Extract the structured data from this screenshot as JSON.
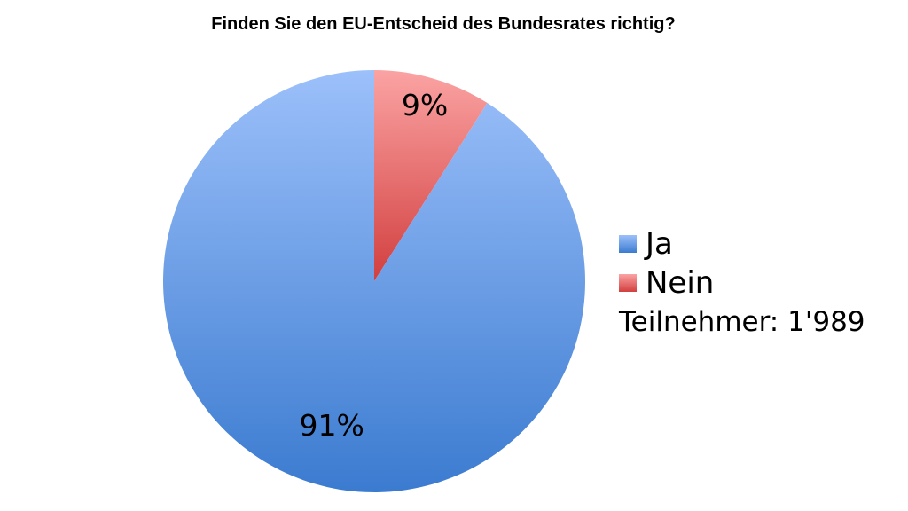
{
  "chart_data": {
    "type": "pie",
    "title": "Finden Sie den EU-Entscheid des Bundesrates richtig?",
    "categories": [
      "Ja",
      "Nein"
    ],
    "values": [
      91,
      9
    ],
    "value_labels": [
      "91%",
      "9%"
    ],
    "colors": {
      "Ja": {
        "top": "#9cc0fa",
        "bottom": "#3b7bd0"
      },
      "Nein": {
        "top": "#fba3a3",
        "bottom": "#d23f3f"
      }
    },
    "legend_placement": "right",
    "legend": [
      "Ja",
      "Nein"
    ],
    "note": "Teilnehmer: 1'989"
  }
}
